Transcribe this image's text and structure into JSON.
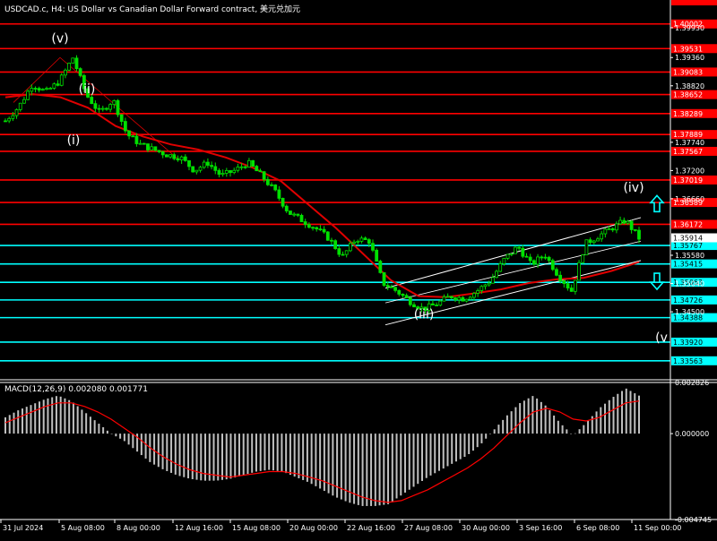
{
  "header": {
    "title": "USDCAD.c, H4:  US Dollar vs Canadian Dollar Forward contract, 美元兑加元",
    "macd_label": "MACD(12,26,9) 0.002080 0.001771"
  },
  "colors": {
    "background": "#000000",
    "candle": "#00e000",
    "red_level": "#ff0000",
    "cyan_level": "#00ffff",
    "ma_line": "#e00000",
    "channel": "#ffffff",
    "macd_hist": "#c0c0c0",
    "macd_signal": "#ff0000",
    "price_label_text": "#ffffff"
  },
  "chart_data": [
    {
      "type": "candlestick",
      "symbol": "USDCAD.c",
      "timeframe": "H4",
      "x_tick_labels": [
        "31 Jul 2024",
        "5 Aug 08:00",
        "8 Aug 00:00",
        "12 Aug 16:00",
        "15 Aug 08:00",
        "20 Aug 00:00",
        "22 Aug 16:00",
        "27 Aug 08:00",
        "30 Aug 00:00",
        "3 Sep 16:00",
        "6 Sep 08:00",
        "11 Sep 00:00"
      ],
      "y_tick_labels": [
        "1.39930",
        "1.39360",
        "1.38820",
        "1.37740",
        "1.37200",
        "1.36660",
        "1.35580",
        "1.35040",
        "1.34500"
      ],
      "ylim": [
        1.332,
        1.4046
      ],
      "price_path": [
        1.3815,
        1.3842,
        1.3885,
        1.387,
        1.389,
        1.3936,
        1.3865,
        1.383,
        1.3855,
        1.379,
        1.377,
        1.376,
        1.375,
        1.3745,
        1.372,
        1.3735,
        1.371,
        1.372,
        1.3735,
        1.371,
        1.368,
        1.364,
        1.3625,
        1.361,
        1.359,
        1.3555,
        1.359,
        1.3585,
        1.3505,
        1.349,
        1.347,
        1.3455,
        1.3465,
        1.348,
        1.3475,
        1.349,
        1.351,
        1.355,
        1.3575,
        1.354,
        1.356,
        1.352,
        1.349,
        1.358,
        1.3595,
        1.361,
        1.3625,
        1.3591
      ],
      "moving_average": [
        1.386,
        1.3866,
        1.386,
        1.384,
        1.3805,
        1.3785,
        1.377,
        1.376,
        1.3745,
        1.3725,
        1.37,
        1.3655,
        1.361,
        1.356,
        1.351,
        1.348,
        1.3478,
        1.3485,
        1.3493,
        1.3505,
        1.3512,
        1.3515,
        1.3528,
        1.3545
      ],
      "current_price_label": "1.35914",
      "levels": [
        {
          "label": "1.40002",
          "color": "red"
        },
        {
          "label": "1.39531",
          "color": "red"
        },
        {
          "label": "1.39083",
          "color": "red"
        },
        {
          "label": "1.38652",
          "color": "red"
        },
        {
          "label": "1.38289",
          "color": "red"
        },
        {
          "label": "1.37889",
          "color": "red"
        },
        {
          "label": "1.37567",
          "color": "red"
        },
        {
          "label": "1.37019",
          "color": "red"
        },
        {
          "label": "1.36589",
          "color": "red"
        },
        {
          "label": "1.36172",
          "color": "red"
        },
        {
          "label": "1.35767",
          "color": "cyan"
        },
        {
          "label": "1.35415",
          "color": "cyan"
        },
        {
          "label": "1.35063",
          "color": "cyan"
        },
        {
          "label": "1.34726",
          "color": "cyan"
        },
        {
          "label": "1.34388",
          "color": "cyan"
        },
        {
          "label": "1.33920",
          "color": "cyan"
        },
        {
          "label": "1.33563",
          "color": "cyan"
        }
      ],
      "wave_labels": [
        "(v)",
        "(ii)",
        "(i)",
        "(iii)",
        "(iv)",
        "(v"
      ],
      "arrows": [
        "up",
        "down"
      ]
    },
    {
      "type": "bar",
      "indicator": "MACD(12,26,9)",
      "macd_value": 0.00208,
      "signal_value": 0.001771,
      "y_tick_labels": [
        "0.002826",
        "0.000000",
        "-0.004745"
      ],
      "ylim": [
        -0.004745,
        0.002826
      ],
      "histogram": [
        0.0009,
        0.0013,
        0.0016,
        0.0019,
        0.0021,
        0.0018,
        0.0012,
        0.0006,
        0.0,
        -0.0004,
        -0.001,
        -0.0016,
        -0.002,
        -0.0023,
        -0.0025,
        -0.0026,
        -0.0026,
        -0.0025,
        -0.0023,
        -0.0021,
        -0.002,
        -0.0021,
        -0.0024,
        -0.0027,
        -0.0031,
        -0.0035,
        -0.0038,
        -0.004,
        -0.004,
        -0.0039,
        -0.0034,
        -0.0029,
        -0.0024,
        -0.002,
        -0.0016,
        -0.0012,
        -0.0006,
        0.0002,
        0.001,
        0.0017,
        0.0021,
        0.0015,
        0.0006,
        -0.0001,
        0.0006,
        0.0014,
        0.002,
        0.0025,
        0.0021
      ],
      "signal": [
        0.0006,
        0.0009,
        0.0012,
        0.0015,
        0.0017,
        0.0017,
        0.0015,
        0.0012,
        0.0008,
        0.0003,
        -0.0002,
        -0.0008,
        -0.0013,
        -0.0017,
        -0.002,
        -0.0022,
        -0.0023,
        -0.0024,
        -0.0023,
        -0.0022,
        -0.0021,
        -0.0021,
        -0.0022,
        -0.0024,
        -0.0026,
        -0.0029,
        -0.0032,
        -0.0035,
        -0.0037,
        -0.0038,
        -0.0037,
        -0.0034,
        -0.0031,
        -0.0027,
        -0.0023,
        -0.0019,
        -0.0014,
        -0.0008,
        -0.0001,
        0.0006,
        0.0012,
        0.0014,
        0.0012,
        0.0008,
        0.0007,
        0.0009,
        0.0013,
        0.0017,
        0.0018
      ]
    }
  ]
}
